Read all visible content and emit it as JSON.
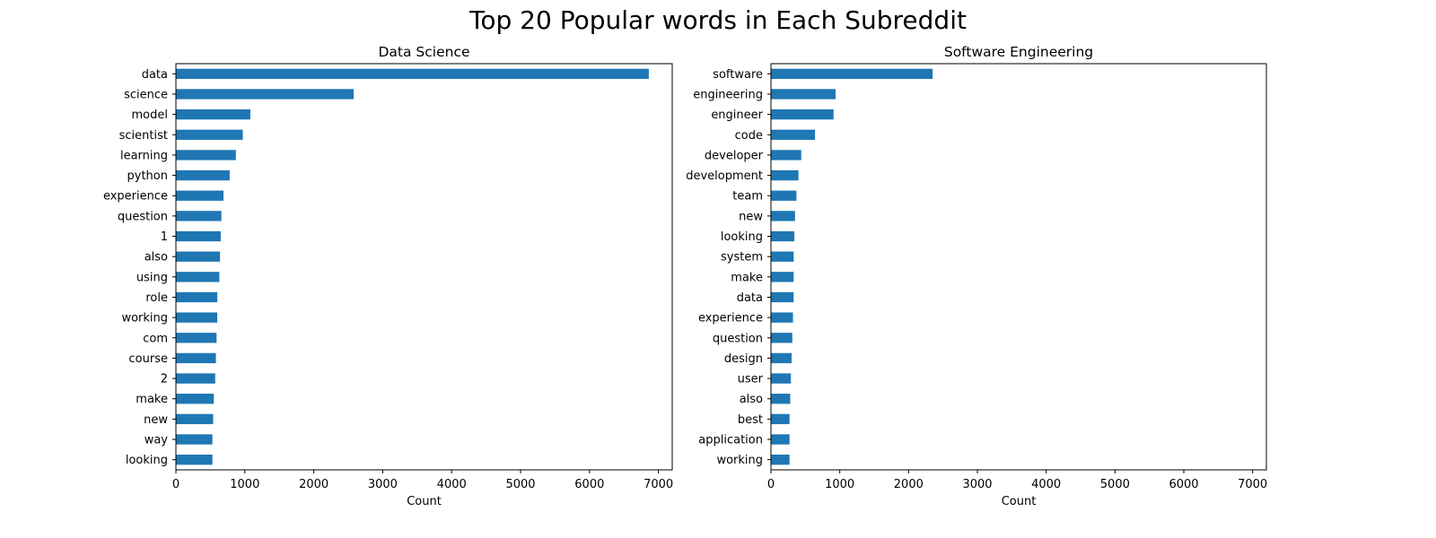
{
  "figure": {
    "title": "Top 20 Popular words in Each Subreddit",
    "bar_color": "#1f77b4"
  },
  "chart_data": [
    {
      "type": "bar",
      "orientation": "horizontal",
      "title": "Data Science",
      "xlabel": "Count",
      "ylabel": "",
      "xlim": [
        0,
        7200
      ],
      "xticks": [
        0,
        1000,
        2000,
        3000,
        4000,
        5000,
        6000,
        7000
      ],
      "grid": false,
      "categories": [
        "data",
        "science",
        "model",
        "scientist",
        "learning",
        "python",
        "experience",
        "question",
        "1",
        "also",
        "using",
        "role",
        "working",
        "com",
        "course",
        "2",
        "make",
        "new",
        "way",
        "looking"
      ],
      "values": [
        6860,
        2580,
        1080,
        970,
        870,
        780,
        690,
        660,
        650,
        640,
        630,
        600,
        600,
        590,
        580,
        570,
        550,
        540,
        530,
        530
      ]
    },
    {
      "type": "bar",
      "orientation": "horizontal",
      "title": "Software Engineering",
      "xlabel": "Count",
      "ylabel": "",
      "xlim": [
        0,
        7200
      ],
      "xticks": [
        0,
        1000,
        2000,
        3000,
        4000,
        5000,
        6000,
        7000
      ],
      "grid": false,
      "categories": [
        "software",
        "engineering",
        "engineer",
        "code",
        "developer",
        "development",
        "team",
        "new",
        "looking",
        "system",
        "make",
        "data",
        "experience",
        "question",
        "design",
        "user",
        "also",
        "best",
        "application",
        "working"
      ],
      "values": [
        2350,
        940,
        910,
        640,
        440,
        400,
        370,
        350,
        340,
        330,
        330,
        330,
        320,
        310,
        300,
        290,
        280,
        270,
        270,
        270
      ]
    }
  ]
}
